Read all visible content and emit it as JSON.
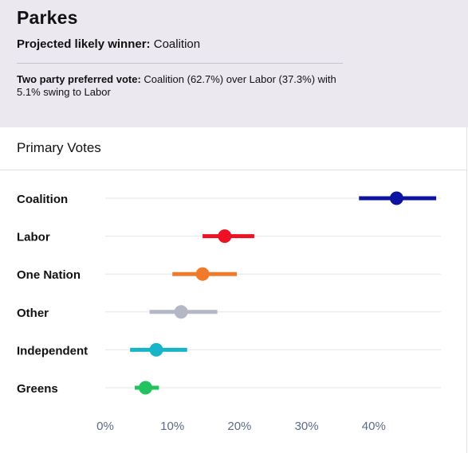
{
  "header": {
    "title": "Parkes",
    "winner_label": "Projected likely winner:",
    "winner_value": "Coalition",
    "tpp_label": "Two party preferred vote:",
    "tpp_text": "Coalition (62.7%) over Labor (37.3%) with 5.1% swing to Labor"
  },
  "section": {
    "title": "Primary Votes"
  },
  "chart_data": {
    "type": "scatter",
    "title": "",
    "xlabel": "",
    "ylabel": "",
    "xlim": [
      0,
      50
    ],
    "x_ticks": [
      0,
      10,
      20,
      30,
      40
    ],
    "x_tick_labels": [
      "0%",
      "10%",
      "20%",
      "30%",
      "40%"
    ],
    "grid": true,
    "categories": [
      "Coalition",
      "Labor",
      "One Nation",
      "Other",
      "Independent",
      "Greens"
    ],
    "series": [
      {
        "values": [
          43.4,
          17.8,
          14.5,
          11.3,
          7.6,
          6.0
        ],
        "low": [
          37.8,
          14.5,
          10.0,
          6.6,
          3.7,
          4.4
        ],
        "high": [
          49.3,
          22.2,
          19.6,
          16.7,
          12.2,
          8.0
        ],
        "colors": [
          "#0a14a0",
          "#ee1124",
          "#f07a2a",
          "#b4b8c4",
          "#18b5c8",
          "#22c25e"
        ]
      }
    ]
  }
}
